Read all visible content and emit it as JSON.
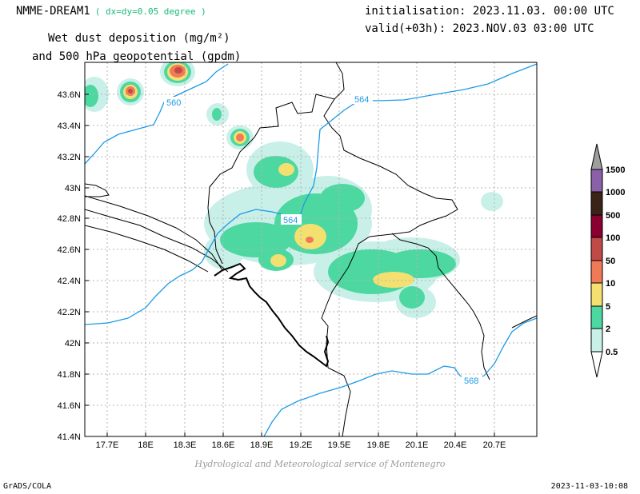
{
  "header": {
    "model": "NMME-DREAM1",
    "resolution": "( dx=dy=0.05 degree )",
    "field_line1": "Wet dust deposition (mg/m²)",
    "field_line2": "and 500 hPa geopotential (gpdm)",
    "init": "initialisation: 2023.11.03. 00:00 UTC",
    "valid": "valid(+03h): 2023.NOV.03 03:00 UTC"
  },
  "footer": {
    "credit": "Hydrological and Meteorological service of Montenegro",
    "left": "GrADS/COLA",
    "right": "2023-11-03-10:08"
  },
  "map": {
    "lon_ticks": [
      "17.7E",
      "18E",
      "18.3E",
      "18.6E",
      "18.9E",
      "19.2E",
      "19.5E",
      "19.8E",
      "20.1E",
      "20.4E",
      "20.7E"
    ],
    "lat_ticks": [
      "43.6N",
      "43.4N",
      "43.2N",
      "43N",
      "42.8N",
      "42.6N",
      "42.4N",
      "42.2N",
      "42N",
      "41.8N",
      "41.6N",
      "41.4N"
    ],
    "contour_labels": [
      "560",
      "564",
      "564",
      "568"
    ]
  },
  "colorbar": {
    "levels": [
      "1500",
      "1000",
      "500",
      "100",
      "50",
      "10",
      "5",
      "2",
      "0.5"
    ],
    "colors": [
      "#9e9e9e",
      "#8a60a8",
      "#3a2418",
      "#8a0030",
      "#c04a48",
      "#f07a58",
      "#f4e070",
      "#4cd8a0",
      "#c8f0e8"
    ]
  },
  "colors": {
    "contour": "#1e9be6",
    "border": "#000000",
    "grid": "#b4b4b4",
    "resolution_text": "#18b878"
  }
}
